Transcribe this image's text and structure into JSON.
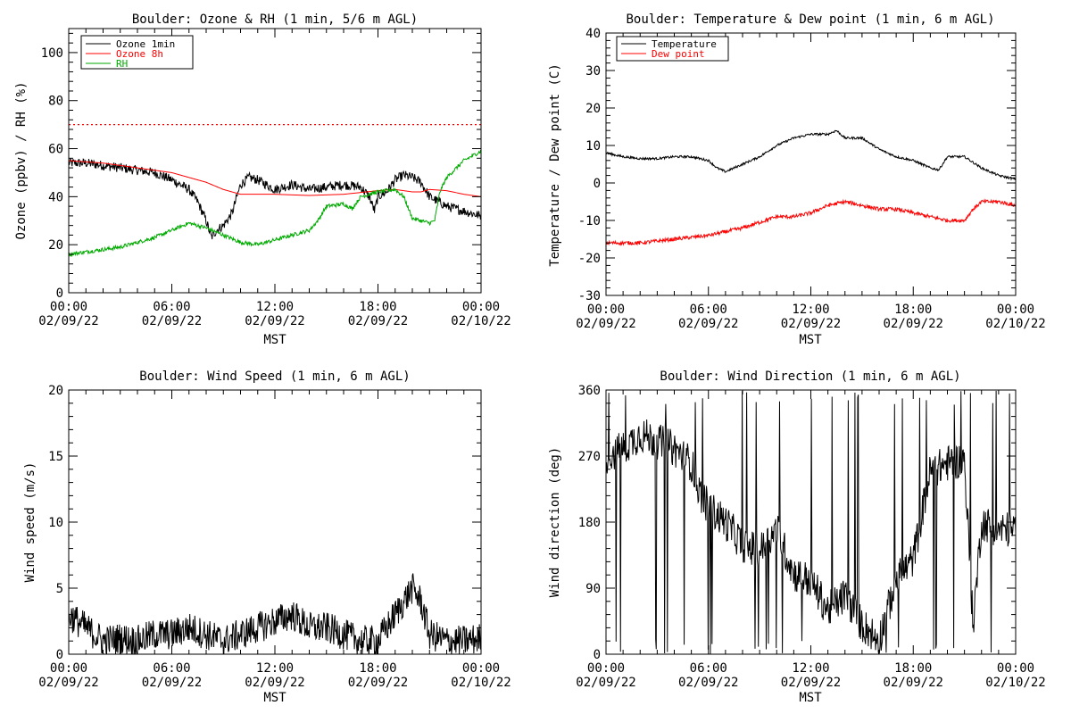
{
  "chart_data": [
    {
      "type": "line",
      "title": "Boulder: Ozone & RH (1 min, 5/6 m AGL)",
      "xlabel": "MST",
      "ylabel": "Ozone (ppbv) / RH (%)",
      "x_range": [
        "02/09/22 00:00",
        "02/10/22 00:00"
      ],
      "x_tick_labels": [
        [
          "00:00",
          "02/09/22"
        ],
        [
          "06:00",
          "02/09/22"
        ],
        [
          "12:00",
          "02/09/22"
        ],
        [
          "18:00",
          "02/09/22"
        ],
        [
          "00:00",
          "02/10/22"
        ]
      ],
      "ylim": [
        0,
        110
      ],
      "y_ticks": [
        0,
        20,
        40,
        60,
        80,
        100
      ],
      "grid": false,
      "legend": "top-left",
      "reference_line": {
        "value": 70,
        "style": "dotted",
        "color": "#ff0000"
      },
      "series": [
        {
          "name": "Ozone 1min",
          "color": "#000000",
          "noise": 2.0,
          "x_hours": [
            0,
            1,
            2,
            3,
            4,
            5,
            6,
            7,
            7.5,
            8,
            8.3,
            8.6,
            9,
            9.5,
            10,
            10.5,
            11,
            11.5,
            12,
            13,
            14,
            15,
            16,
            17,
            17.5,
            17.8,
            18,
            18.5,
            19,
            19.5,
            20,
            20.5,
            21,
            21.5,
            22,
            23,
            24
          ],
          "values": [
            54,
            54,
            53,
            52,
            51,
            50,
            47,
            43,
            38,
            30,
            23,
            26,
            28,
            33,
            45,
            48,
            47,
            45,
            43,
            45,
            43,
            44,
            45,
            44,
            40,
            34,
            40,
            42,
            47,
            49,
            48,
            46,
            40,
            38,
            36,
            34,
            32
          ]
        },
        {
          "name": "Ozone 8h",
          "color": "#ff0000",
          "noise": 0,
          "x_hours": [
            0,
            2,
            4,
            6,
            7,
            8,
            9,
            10,
            11,
            12,
            14,
            16,
            18,
            19,
            20,
            20.5,
            21,
            22,
            23,
            24
          ],
          "values": [
            55,
            54,
            52,
            50,
            48,
            46,
            43,
            41,
            41,
            41,
            40.5,
            41,
            42.5,
            43,
            42,
            42,
            43,
            42.5,
            41,
            40
          ]
        },
        {
          "name": "RH",
          "color": "#00aa00",
          "noise": 0.8,
          "x_hours": [
            0,
            1,
            2,
            3,
            4,
            5,
            6,
            7,
            8,
            9,
            10,
            11,
            12,
            13,
            14,
            14.5,
            15,
            16,
            16.5,
            17,
            18,
            19,
            19.5,
            20,
            20.5,
            21,
            21.3,
            21.6,
            22,
            23,
            24
          ],
          "values": [
            16,
            17,
            18,
            19,
            21,
            23,
            26,
            29,
            27,
            24,
            21,
            20,
            22,
            24,
            26,
            30,
            36,
            37,
            35,
            40,
            42,
            43,
            40,
            31,
            30,
            29,
            30,
            42,
            48,
            55,
            59
          ]
        }
      ]
    },
    {
      "type": "line",
      "title": "Boulder: Temperature & Dew point (1 min, 6 m AGL)",
      "xlabel": "MST",
      "ylabel": "Temperature / Dew point (C)",
      "x_range": [
        "02/09/22 00:00",
        "02/10/22 00:00"
      ],
      "x_tick_labels": [
        [
          "00:00",
          "02/09/22"
        ],
        [
          "06:00",
          "02/09/22"
        ],
        [
          "12:00",
          "02/09/22"
        ],
        [
          "18:00",
          "02/09/22"
        ],
        [
          "00:00",
          "02/10/22"
        ]
      ],
      "ylim": [
        -30,
        40
      ],
      "y_ticks": [
        -30,
        -20,
        -10,
        0,
        10,
        20,
        30,
        40
      ],
      "grid": false,
      "legend": "top-left",
      "series": [
        {
          "name": "Temperature",
          "color": "#000000",
          "noise": 0.3,
          "x_hours": [
            0,
            1,
            2,
            3,
            4,
            5,
            6,
            6.5,
            7,
            8,
            9,
            10,
            11,
            12,
            13,
            13.5,
            14,
            15,
            16,
            17,
            18,
            19,
            19.5,
            20,
            21,
            22,
            23,
            24
          ],
          "values": [
            8,
            7,
            6.5,
            6.5,
            7,
            7,
            6,
            4,
            3,
            5,
            7,
            10,
            12,
            13,
            13,
            14,
            12,
            12,
            9,
            7,
            6,
            4,
            3.5,
            7,
            7,
            4,
            2,
            1
          ]
        },
        {
          "name": "Dew point",
          "color": "#ff0000",
          "noise": 0.5,
          "x_hours": [
            0,
            2,
            4,
            6,
            8,
            10,
            11,
            12,
            13,
            14,
            15,
            16,
            17,
            18,
            19,
            20,
            21,
            21.5,
            22,
            23,
            24
          ],
          "values": [
            -16,
            -16,
            -15,
            -14,
            -12,
            -9,
            -9,
            -8,
            -6,
            -5,
            -6,
            -7,
            -7,
            -8,
            -9,
            -10,
            -10,
            -7,
            -5,
            -5,
            -6
          ]
        }
      ]
    },
    {
      "type": "line",
      "title": "Boulder: Wind Speed (1 min, 6 m AGL)",
      "xlabel": "MST",
      "ylabel": "Wind speed (m/s)",
      "x_range": [
        "02/09/22 00:00",
        "02/10/22 00:00"
      ],
      "x_tick_labels": [
        [
          "00:00",
          "02/09/22"
        ],
        [
          "06:00",
          "02/09/22"
        ],
        [
          "12:00",
          "02/09/22"
        ],
        [
          "18:00",
          "02/09/22"
        ],
        [
          "00:00",
          "02/10/22"
        ]
      ],
      "ylim": [
        0,
        20
      ],
      "y_ticks": [
        0,
        5,
        10,
        15,
        20
      ],
      "grid": false,
      "series": [
        {
          "color": "#000000",
          "noise": 1.2,
          "clip_min": 0,
          "x_hours": [
            0,
            1,
            2,
            3,
            4,
            5,
            6,
            7,
            8,
            9,
            10,
            11,
            12,
            13,
            14,
            15,
            16,
            17,
            18,
            19,
            19.5,
            20,
            20.5,
            21,
            22,
            23,
            24
          ],
          "values": [
            3,
            2,
            1,
            1.2,
            1,
            1.5,
            1.5,
            2,
            1.5,
            1,
            1.5,
            2,
            2.5,
            3,
            2,
            2,
            1.5,
            1,
            1,
            3,
            4,
            5,
            4,
            1.5,
            1,
            1,
            1.2
          ]
        }
      ]
    },
    {
      "type": "line",
      "title": "Boulder: Wind Direction (1 min, 6 m AGL)",
      "xlabel": "MST",
      "ylabel": "Wind direction (deg)",
      "x_range": [
        "02/09/22 00:00",
        "02/10/22 00:00"
      ],
      "x_tick_labels": [
        [
          "00:00",
          "02/09/22"
        ],
        [
          "06:00",
          "02/09/22"
        ],
        [
          "12:00",
          "02/09/22"
        ],
        [
          "18:00",
          "02/09/22"
        ],
        [
          "00:00",
          "02/10/22"
        ]
      ],
      "ylim": [
        0,
        360
      ],
      "y_ticks": [
        0,
        90,
        180,
        270,
        360
      ],
      "grid": false,
      "series": [
        {
          "color": "#000000",
          "noise": 25,
          "spike_prob": 0.06,
          "clip_min": 0,
          "clip_max": 360,
          "x_hours": [
            0,
            1,
            2,
            3,
            4,
            5,
            5.5,
            6,
            7,
            8,
            9,
            10,
            11,
            12,
            13,
            14,
            15,
            16,
            17,
            18,
            19,
            20,
            21,
            21.5,
            22,
            23,
            24
          ],
          "values": [
            270,
            280,
            300,
            290,
            280,
            260,
            220,
            200,
            180,
            150,
            140,
            170,
            110,
            100,
            60,
            80,
            40,
            20,
            100,
            130,
            250,
            260,
            265,
            40,
            180,
            170,
            170
          ]
        }
      ]
    }
  ]
}
